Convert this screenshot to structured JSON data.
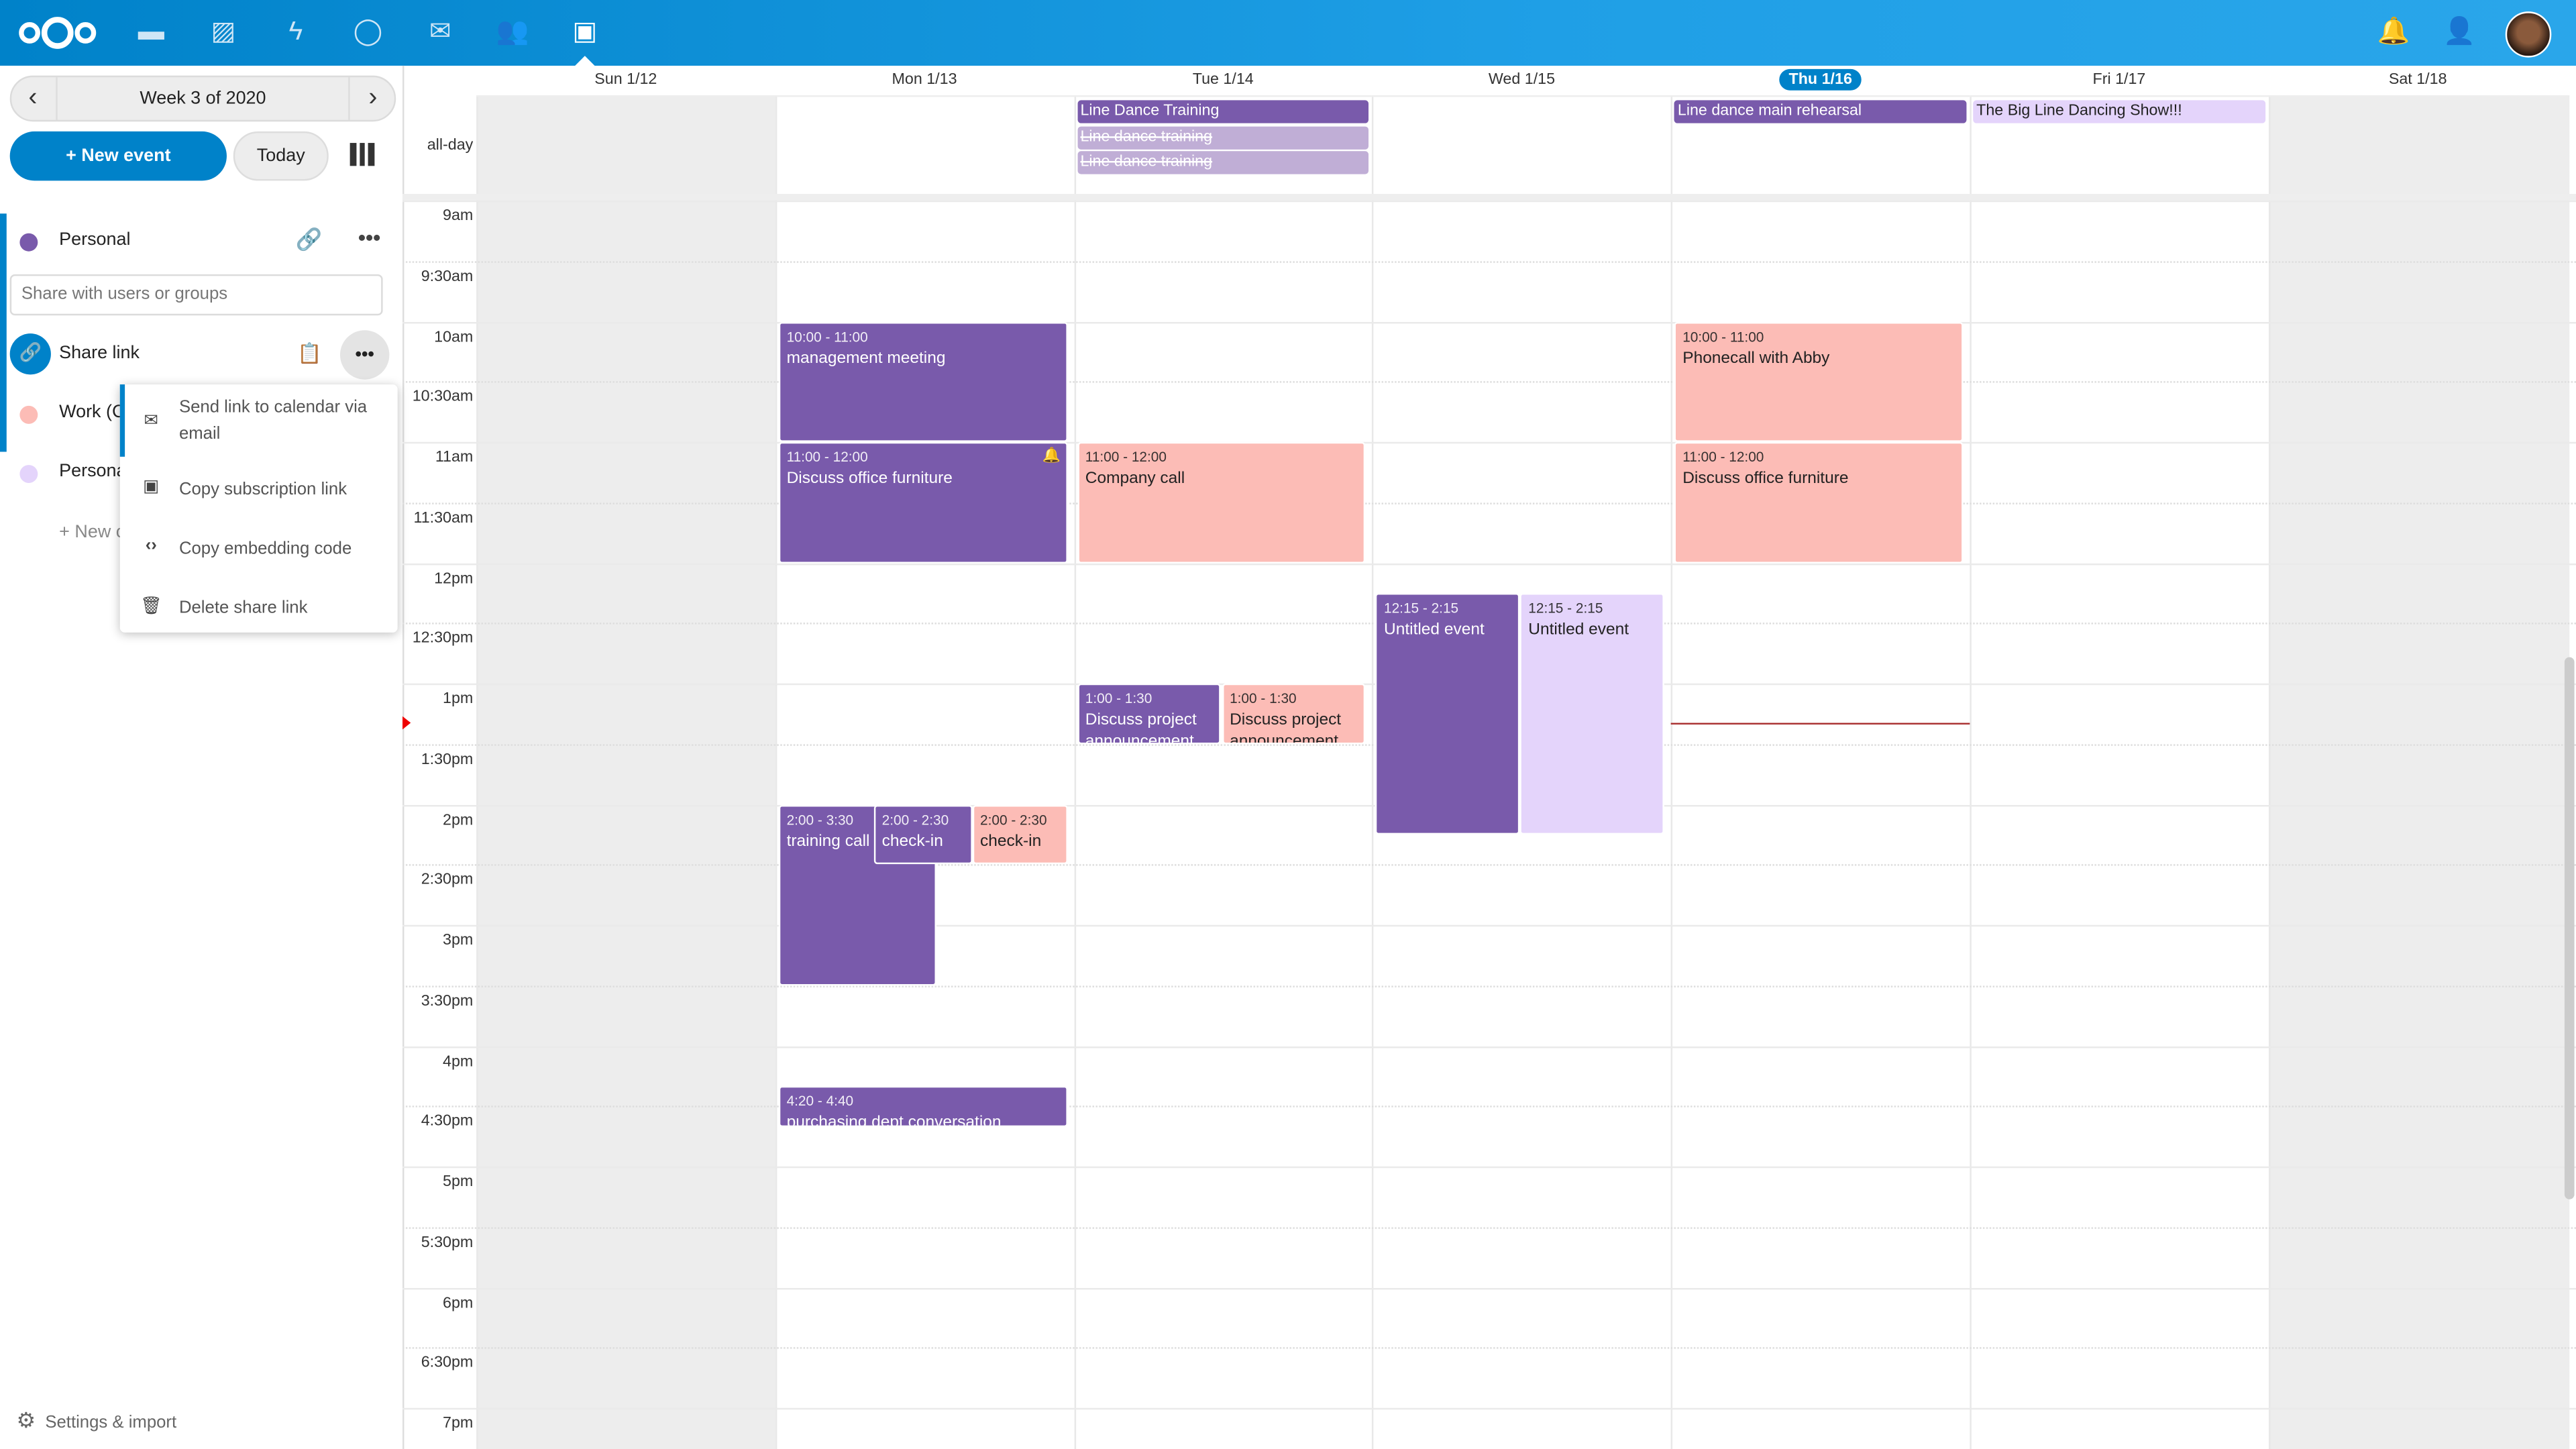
{
  "colors": {
    "accent": "#0082c9",
    "purple": "#795aab",
    "pink": "#fcbcb6",
    "lavender": "#e4d4fb",
    "faded": "#c0aed6"
  },
  "header": {
    "apps": [
      "files-icon",
      "photos-icon",
      "activity-icon",
      "talk-icon",
      "mail-icon",
      "contacts-icon",
      "calendar-icon"
    ],
    "right": [
      "notifications-icon",
      "contacts-menu-icon",
      "user-avatar"
    ]
  },
  "sidebar": {
    "week_label": "Week 3 of 2020",
    "new_event": "+ New event",
    "today": "Today",
    "calendars": [
      {
        "name": "Personal",
        "color": "#795aab"
      },
      {
        "name": "Work (C",
        "color": "#fcbcb6"
      },
      {
        "name": "Persona",
        "color": "#e4d4fb"
      }
    ],
    "share_placeholder": "Share with users or groups",
    "share_link": "Share link",
    "new_calendar": "+ New c",
    "settings": "Settings & import",
    "menu": [
      "Send link to calendar via email",
      "Copy subscription link",
      "Copy embedding code",
      "Delete share link"
    ]
  },
  "calendar": {
    "allday_label": "all-day",
    "days": [
      "Sun 1/12",
      "Mon 1/13",
      "Tue 1/14",
      "Wed 1/15",
      "Thu 1/16",
      "Fri 1/17",
      "Sat 1/18"
    ],
    "today_index": 4,
    "time_labels": [
      "9am",
      "9:30am",
      "10am",
      "10:30am",
      "11am",
      "11:30am",
      "12pm",
      "12:30pm",
      "1pm",
      "1:30pm",
      "2pm",
      "2:30pm",
      "3pm",
      "3:30pm",
      "4pm",
      "4:30pm",
      "5pm",
      "5:30pm",
      "6pm",
      "6:30pm",
      "7pm"
    ],
    "now_hour": 13.33,
    "allday_events": [
      {
        "day": 2,
        "row": 0,
        "title": "Line Dance Training",
        "color": "purple"
      },
      {
        "day": 2,
        "row": 1,
        "title": "Line dance training",
        "color": "faded",
        "cancelled": true
      },
      {
        "day": 2,
        "row": 2,
        "title": "Line dance training",
        "color": "faded",
        "cancelled": true
      },
      {
        "day": 4,
        "row": 0,
        "title": "Line dance main rehearsal",
        "color": "purple"
      },
      {
        "day": 5,
        "row": 0,
        "title": "The Big Line Dancing Show!!!",
        "color": "lavender"
      }
    ],
    "events": [
      {
        "day": 1,
        "start": 10,
        "end": 11,
        "time": "10:00 - 11:00",
        "title": "management meeting",
        "color": "purple",
        "lane": [
          0,
          1
        ]
      },
      {
        "day": 1,
        "start": 11,
        "end": 12,
        "time": "11:00 - 12:00",
        "title": "Discuss office furniture",
        "color": "purple",
        "lane": [
          0,
          1
        ],
        "bell": true
      },
      {
        "day": 1,
        "start": 14,
        "end": 15.5,
        "time": "2:00 - 3:30",
        "title": "training call",
        "color": "purple",
        "lane": [
          0,
          0.55
        ]
      },
      {
        "day": 1,
        "start": 14,
        "end": 14.5,
        "time": "2:00 - 2:30",
        "title": "check-in",
        "color": "purple",
        "lane": [
          0.33,
          0.67
        ]
      },
      {
        "day": 1,
        "start": 14,
        "end": 14.5,
        "time": "2:00 - 2:30",
        "title": "check-in",
        "color": "pink",
        "lane": [
          0.67,
          1
        ]
      },
      {
        "day": 1,
        "start": 16.333,
        "end": 16.667,
        "time": "4:20 - 4:40",
        "title": "purchasing dept conversation",
        "color": "purple",
        "lane": [
          0,
          1
        ]
      },
      {
        "day": 2,
        "start": 11,
        "end": 12,
        "time": "11:00 - 12:00",
        "title": "Company call",
        "color": "pink",
        "lane": [
          0,
          1
        ]
      },
      {
        "day": 2,
        "start": 13,
        "end": 13.5,
        "time": "1:00 - 1:30",
        "title": "Discuss project announcement",
        "color": "purple",
        "lane": [
          0,
          0.5
        ]
      },
      {
        "day": 2,
        "start": 13,
        "end": 13.5,
        "time": "1:00 - 1:30",
        "title": "Discuss project announcement",
        "color": "pink",
        "lane": [
          0.5,
          1
        ]
      },
      {
        "day": 3,
        "start": 12.25,
        "end": 14.25,
        "time": "12:15 - 2:15",
        "title": "Untitled event",
        "color": "purple",
        "lane": [
          0,
          0.5
        ]
      },
      {
        "day": 3,
        "start": 12.25,
        "end": 14.25,
        "time": "12:15 - 2:15",
        "title": "Untitled event",
        "color": "lavender",
        "lane": [
          0.5,
          1
        ]
      },
      {
        "day": 4,
        "start": 10,
        "end": 11,
        "time": "10:00 - 11:00",
        "title": "Phonecall with Abby",
        "color": "pink",
        "lane": [
          0,
          1
        ]
      },
      {
        "day": 4,
        "start": 11,
        "end": 12,
        "time": "11:00 - 12:00",
        "title": "Discuss office furniture",
        "color": "pink",
        "lane": [
          0,
          1
        ]
      }
    ]
  }
}
